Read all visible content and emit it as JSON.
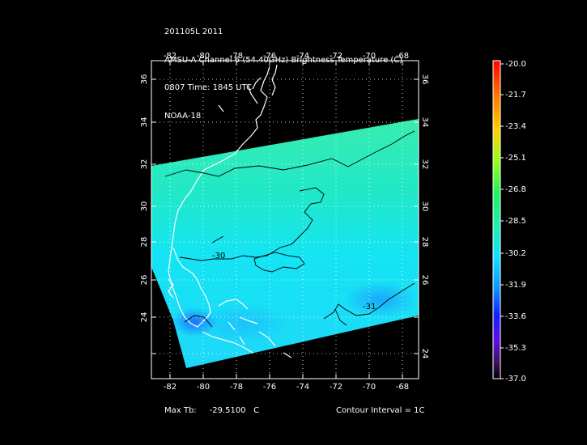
{
  "header": {
    "line1": "201105L 2011",
    "line2": "AMSU-A Channel 6 (54.40GHz) Brightness Temperature (C)",
    "line3": "0807 Time: 1845 UTC",
    "line4": "NOAA-18"
  },
  "axes": {
    "lon_ticks": [
      "-82",
      "-80",
      "-78",
      "-76",
      "-74",
      "-72",
      "-70",
      "-68"
    ],
    "lat_ticks": [
      "36",
      "34",
      "32",
      "30",
      "28",
      "26",
      "24"
    ]
  },
  "colorbar": {
    "labels": [
      "-20.0",
      "-21.7",
      "-23.4",
      "-25.1",
      "-26.8",
      "-28.5",
      "-30.2",
      "-31.9",
      "-33.6",
      "-35.3",
      "-37.0"
    ]
  },
  "contours": {
    "label_30": "-30",
    "label_31": "-31"
  },
  "footer": {
    "max_label": "Max Tb:",
    "max_value": "-29.5100",
    "max_unit": "C",
    "contour_interval": "Contour Interval = 1C"
  },
  "colors": {
    "swath_green": "#20e8a8",
    "swath_cyan": "#18e8f0",
    "swath_blue": "#1a90ff"
  }
}
